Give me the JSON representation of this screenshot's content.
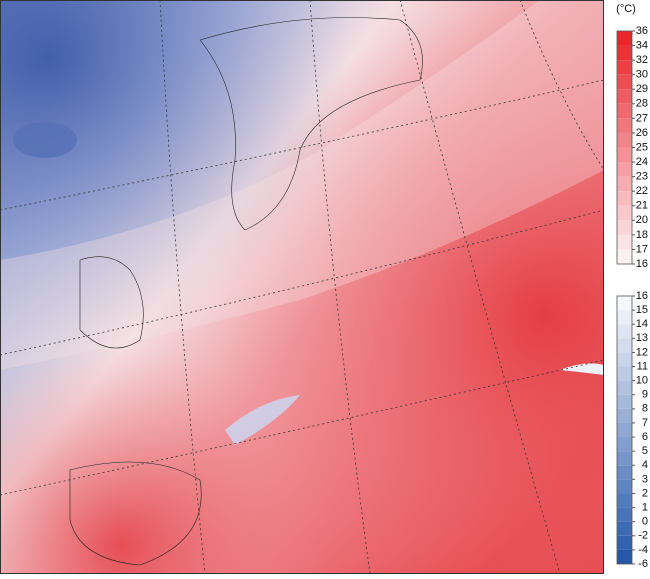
{
  "unit": "(°C)",
  "colorbars": [
    {
      "ticks": [
        36,
        34,
        32,
        30,
        29,
        28,
        27,
        26,
        25,
        24,
        23,
        22,
        21,
        20,
        18,
        17,
        16
      ]
    },
    {
      "ticks": [
        16,
        15,
        14,
        13,
        12,
        11,
        10,
        9,
        8,
        7,
        6,
        5,
        4,
        3,
        2,
        1,
        0,
        -2,
        -4,
        -6
      ]
    }
  ]
}
